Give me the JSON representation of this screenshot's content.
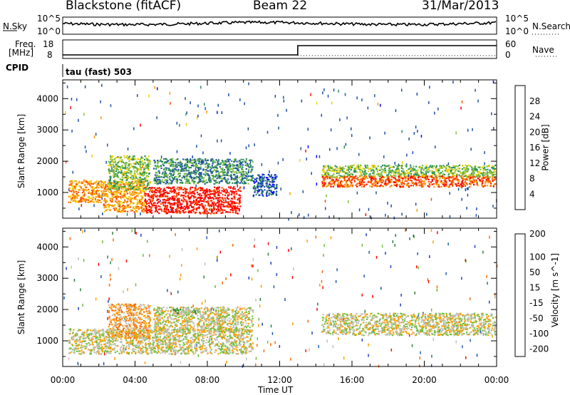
{
  "header": {
    "station": "Blackstone (fitACF)",
    "beam": "Beam 22",
    "date": "31/Mar/2013"
  },
  "strips": {
    "nsky_label": "N.Sky",
    "nsky_ticks": [
      "10^5",
      "10^0"
    ],
    "nsearch_label": "N.Search",
    "nsearch_ticks": [
      "10^5",
      "10^0"
    ],
    "freq_label": "Freq.",
    "freq_unit": "[MHz]",
    "freq_ticks": [
      "18",
      "8"
    ],
    "nave_label": "Nave",
    "nave_ticks": [
      "60",
      "0"
    ],
    "cpid_label": "CPID",
    "cpid_value": "tau (fast) 503"
  },
  "colors": {
    "power_scale": [
      "#0000ff",
      "#1f4fa8",
      "#2a8f5a",
      "#7fc040",
      "#f0d000",
      "#ff9a00",
      "#ff5000",
      "#ff0000"
    ],
    "velocity_scale": [
      "#2040c0",
      "#1e5cb0",
      "#2a8040",
      "#6cc03a",
      "#c0c0b8",
      "#ffa000",
      "#ff6a00",
      "#ff0000"
    ],
    "ground_scatter": "#c0c0b8"
  },
  "chart_data": [
    {
      "type": "heatmap",
      "name_hint": "power",
      "ylabel": "Slant Range [km]",
      "xlabel": "Time UT",
      "x_ticks": [
        "00:00",
        "04:00",
        "08:00",
        "12:00",
        "16:00",
        "20:00",
        "00:00"
      ],
      "y_ticks": [
        "1000",
        "2000",
        "3000",
        "4000"
      ],
      "ylim": [
        180,
        4600
      ],
      "xlim_hours": [
        0,
        24
      ],
      "colorbar": {
        "label": "Power [dB]",
        "ticks": [
          "28",
          "24",
          "20",
          "16",
          "12",
          "8",
          "4"
        ]
      },
      "bands": [
        {
          "t0": 0.3,
          "t1": 2.2,
          "r0": 700,
          "r1": 1400,
          "level": 5
        },
        {
          "t0": 2.2,
          "t1": 4.5,
          "r0": 400,
          "r1": 1400,
          "level": 5
        },
        {
          "t0": 4.5,
          "t1": 9.8,
          "r0": 350,
          "r1": 1200,
          "level": 7
        },
        {
          "t0": 2.5,
          "t1": 4.8,
          "r0": 1100,
          "r1": 2200,
          "level": 3
        },
        {
          "t0": 5.0,
          "t1": 10.5,
          "r0": 1300,
          "r1": 2100,
          "level": 2
        },
        {
          "t0": 14.3,
          "t1": 23.9,
          "r0": 1500,
          "r1": 1900,
          "level": 3
        },
        {
          "t0": 14.3,
          "t1": 23.9,
          "r0": 1200,
          "r1": 1550,
          "level": 6
        },
        {
          "t0": 10.5,
          "t1": 11.8,
          "r0": 900,
          "r1": 1600,
          "level": 1
        }
      ]
    },
    {
      "type": "heatmap",
      "name_hint": "velocity",
      "ylabel": "Slant Range [km]",
      "xlabel": "Time UT",
      "x_ticks": [
        "00:00",
        "04:00",
        "08:00",
        "12:00",
        "16:00",
        "20:00",
        "00:00"
      ],
      "y_ticks": [
        "1000",
        "2000",
        "3000",
        "4000"
      ],
      "ylim": [
        180,
        4600
      ],
      "xlim_hours": [
        0,
        24
      ],
      "colorbar": {
        "label": "Velocity [m s^-1]",
        "ticks": [
          "200",
          "100",
          "50",
          "15",
          "-15",
          "-50",
          "-100",
          "-200"
        ]
      },
      "bands": [
        {
          "t0": 0.3,
          "t1": 10.5,
          "r0": 600,
          "r1": 1400,
          "level": 4
        },
        {
          "t0": 2.5,
          "t1": 4.8,
          "r0": 1100,
          "r1": 2200,
          "level": 5
        },
        {
          "t0": 5.0,
          "t1": 10.5,
          "r0": 1300,
          "r1": 2100,
          "level": 4
        },
        {
          "t0": 14.3,
          "t1": 23.9,
          "r0": 1200,
          "r1": 1900,
          "level": 4
        },
        {
          "t0": 6.0,
          "t1": 7.5,
          "r0": 1900,
          "r1": 2050,
          "level": 3
        }
      ]
    }
  ]
}
